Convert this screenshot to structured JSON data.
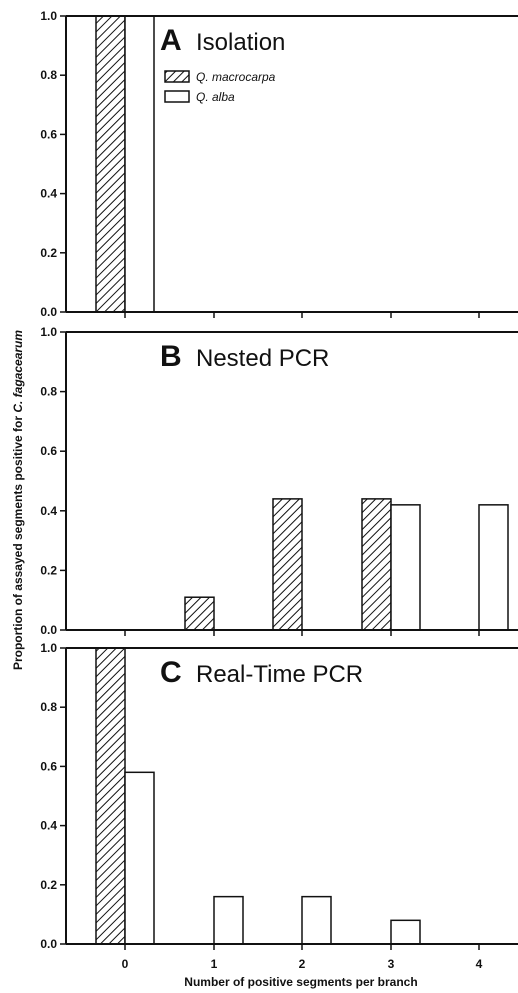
{
  "figure": {
    "ylabel_prefix": "Proportion of assayed segments positive for ",
    "ylabel_species": "C. fagacearum",
    "xlabel": "Number of positive segments per branch"
  },
  "legend": [
    {
      "label": "Q. macrocarpa",
      "pattern": "hatched"
    },
    {
      "label": "Q. alba",
      "pattern": "open"
    }
  ],
  "colors": {
    "stroke": "#111111",
    "fill_open": "#ffffff"
  },
  "chart_data": [
    {
      "type": "bar",
      "panel_letter": "A",
      "title": "Isolation",
      "categories": [
        "0",
        "1",
        "2",
        "3",
        "4"
      ],
      "series": [
        {
          "name": "Q. macrocarpa",
          "values": [
            1.0,
            0,
            0,
            0,
            0
          ]
        },
        {
          "name": "Q. alba",
          "values": [
            1.0,
            0,
            0,
            0,
            0
          ]
        }
      ],
      "ylim": [
        0,
        1.0
      ],
      "yticks": [
        "0.0",
        "0.2",
        "0.4",
        "0.6",
        "0.8",
        "1.0"
      ],
      "show_xtick_labels": false
    },
    {
      "type": "bar",
      "panel_letter": "B",
      "title": "Nested PCR",
      "categories": [
        "0",
        "1",
        "2",
        "3",
        "4"
      ],
      "series": [
        {
          "name": "Q. macrocarpa",
          "values": [
            0,
            0.11,
            0.44,
            0.44,
            0
          ]
        },
        {
          "name": "Q. alba",
          "values": [
            0,
            0,
            0,
            0.42,
            0.42
          ]
        }
      ],
      "ylim": [
        0,
        1.0
      ],
      "yticks": [
        "0.0",
        "0.2",
        "0.4",
        "0.6",
        "0.8",
        "1.0"
      ],
      "show_xtick_labels": false
    },
    {
      "type": "bar",
      "panel_letter": "C",
      "title": "Real-Time PCR",
      "categories": [
        "0",
        "1",
        "2",
        "3",
        "4"
      ],
      "series": [
        {
          "name": "Q. macrocarpa",
          "values": [
            1.0,
            0,
            0,
            0,
            0
          ]
        },
        {
          "name": "Q. alba",
          "values": [
            0.58,
            0.16,
            0.16,
            0.08,
            0
          ]
        }
      ],
      "ylim": [
        0,
        1.0
      ],
      "yticks": [
        "0.0",
        "0.2",
        "0.4",
        "0.6",
        "0.8",
        "1.0"
      ],
      "show_xtick_labels": true
    }
  ]
}
